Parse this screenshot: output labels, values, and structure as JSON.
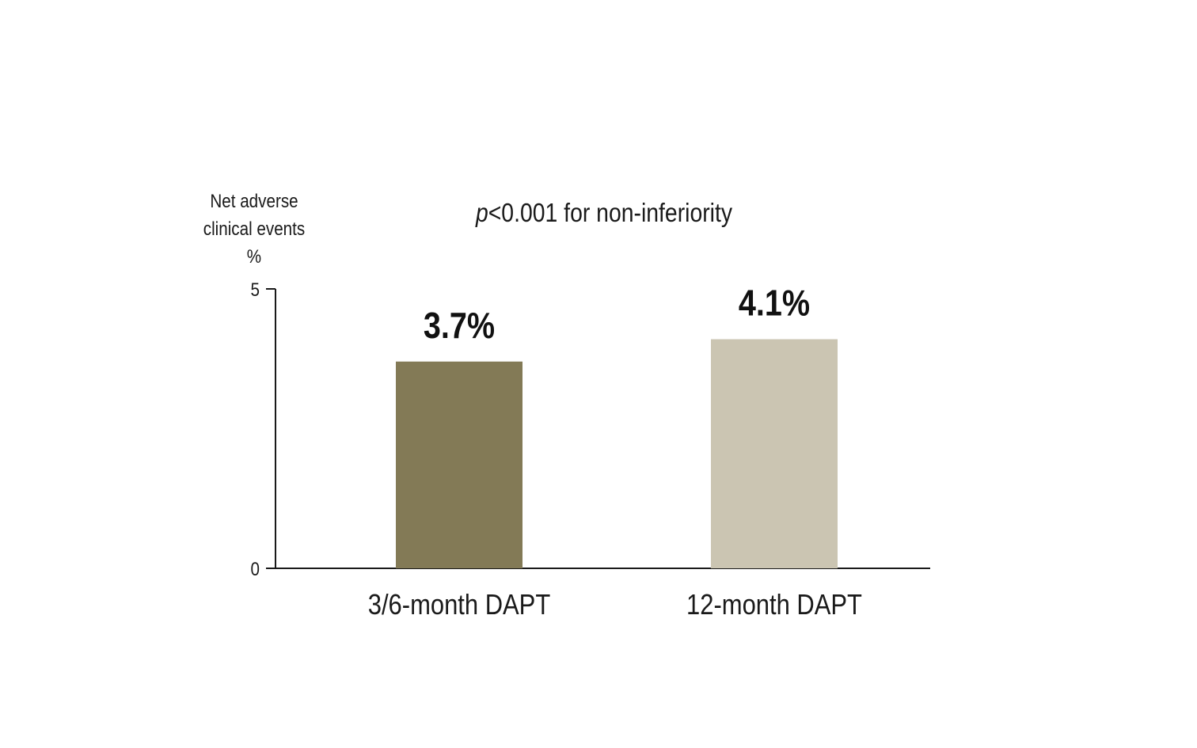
{
  "chart_data": {
    "type": "bar",
    "title": "p<0.001 for non-inferiority",
    "title_parts": {
      "italic": "p",
      "rest": "<0.001 for non-inferiority"
    },
    "ylabel_lines": [
      "Net adverse",
      "clinical events",
      "%"
    ],
    "xlabel": "",
    "ylim": [
      0,
      5
    ],
    "yticks": [
      "0",
      "5"
    ],
    "categories": [
      "3/6-month DAPT",
      "12-month DAPT"
    ],
    "values": [
      3.7,
      4.1
    ],
    "data_labels": [
      "3.7%",
      "4.1%"
    ],
    "colors": [
      "#837a56",
      "#cbc5b2"
    ],
    "grid": false,
    "legend": "none"
  }
}
